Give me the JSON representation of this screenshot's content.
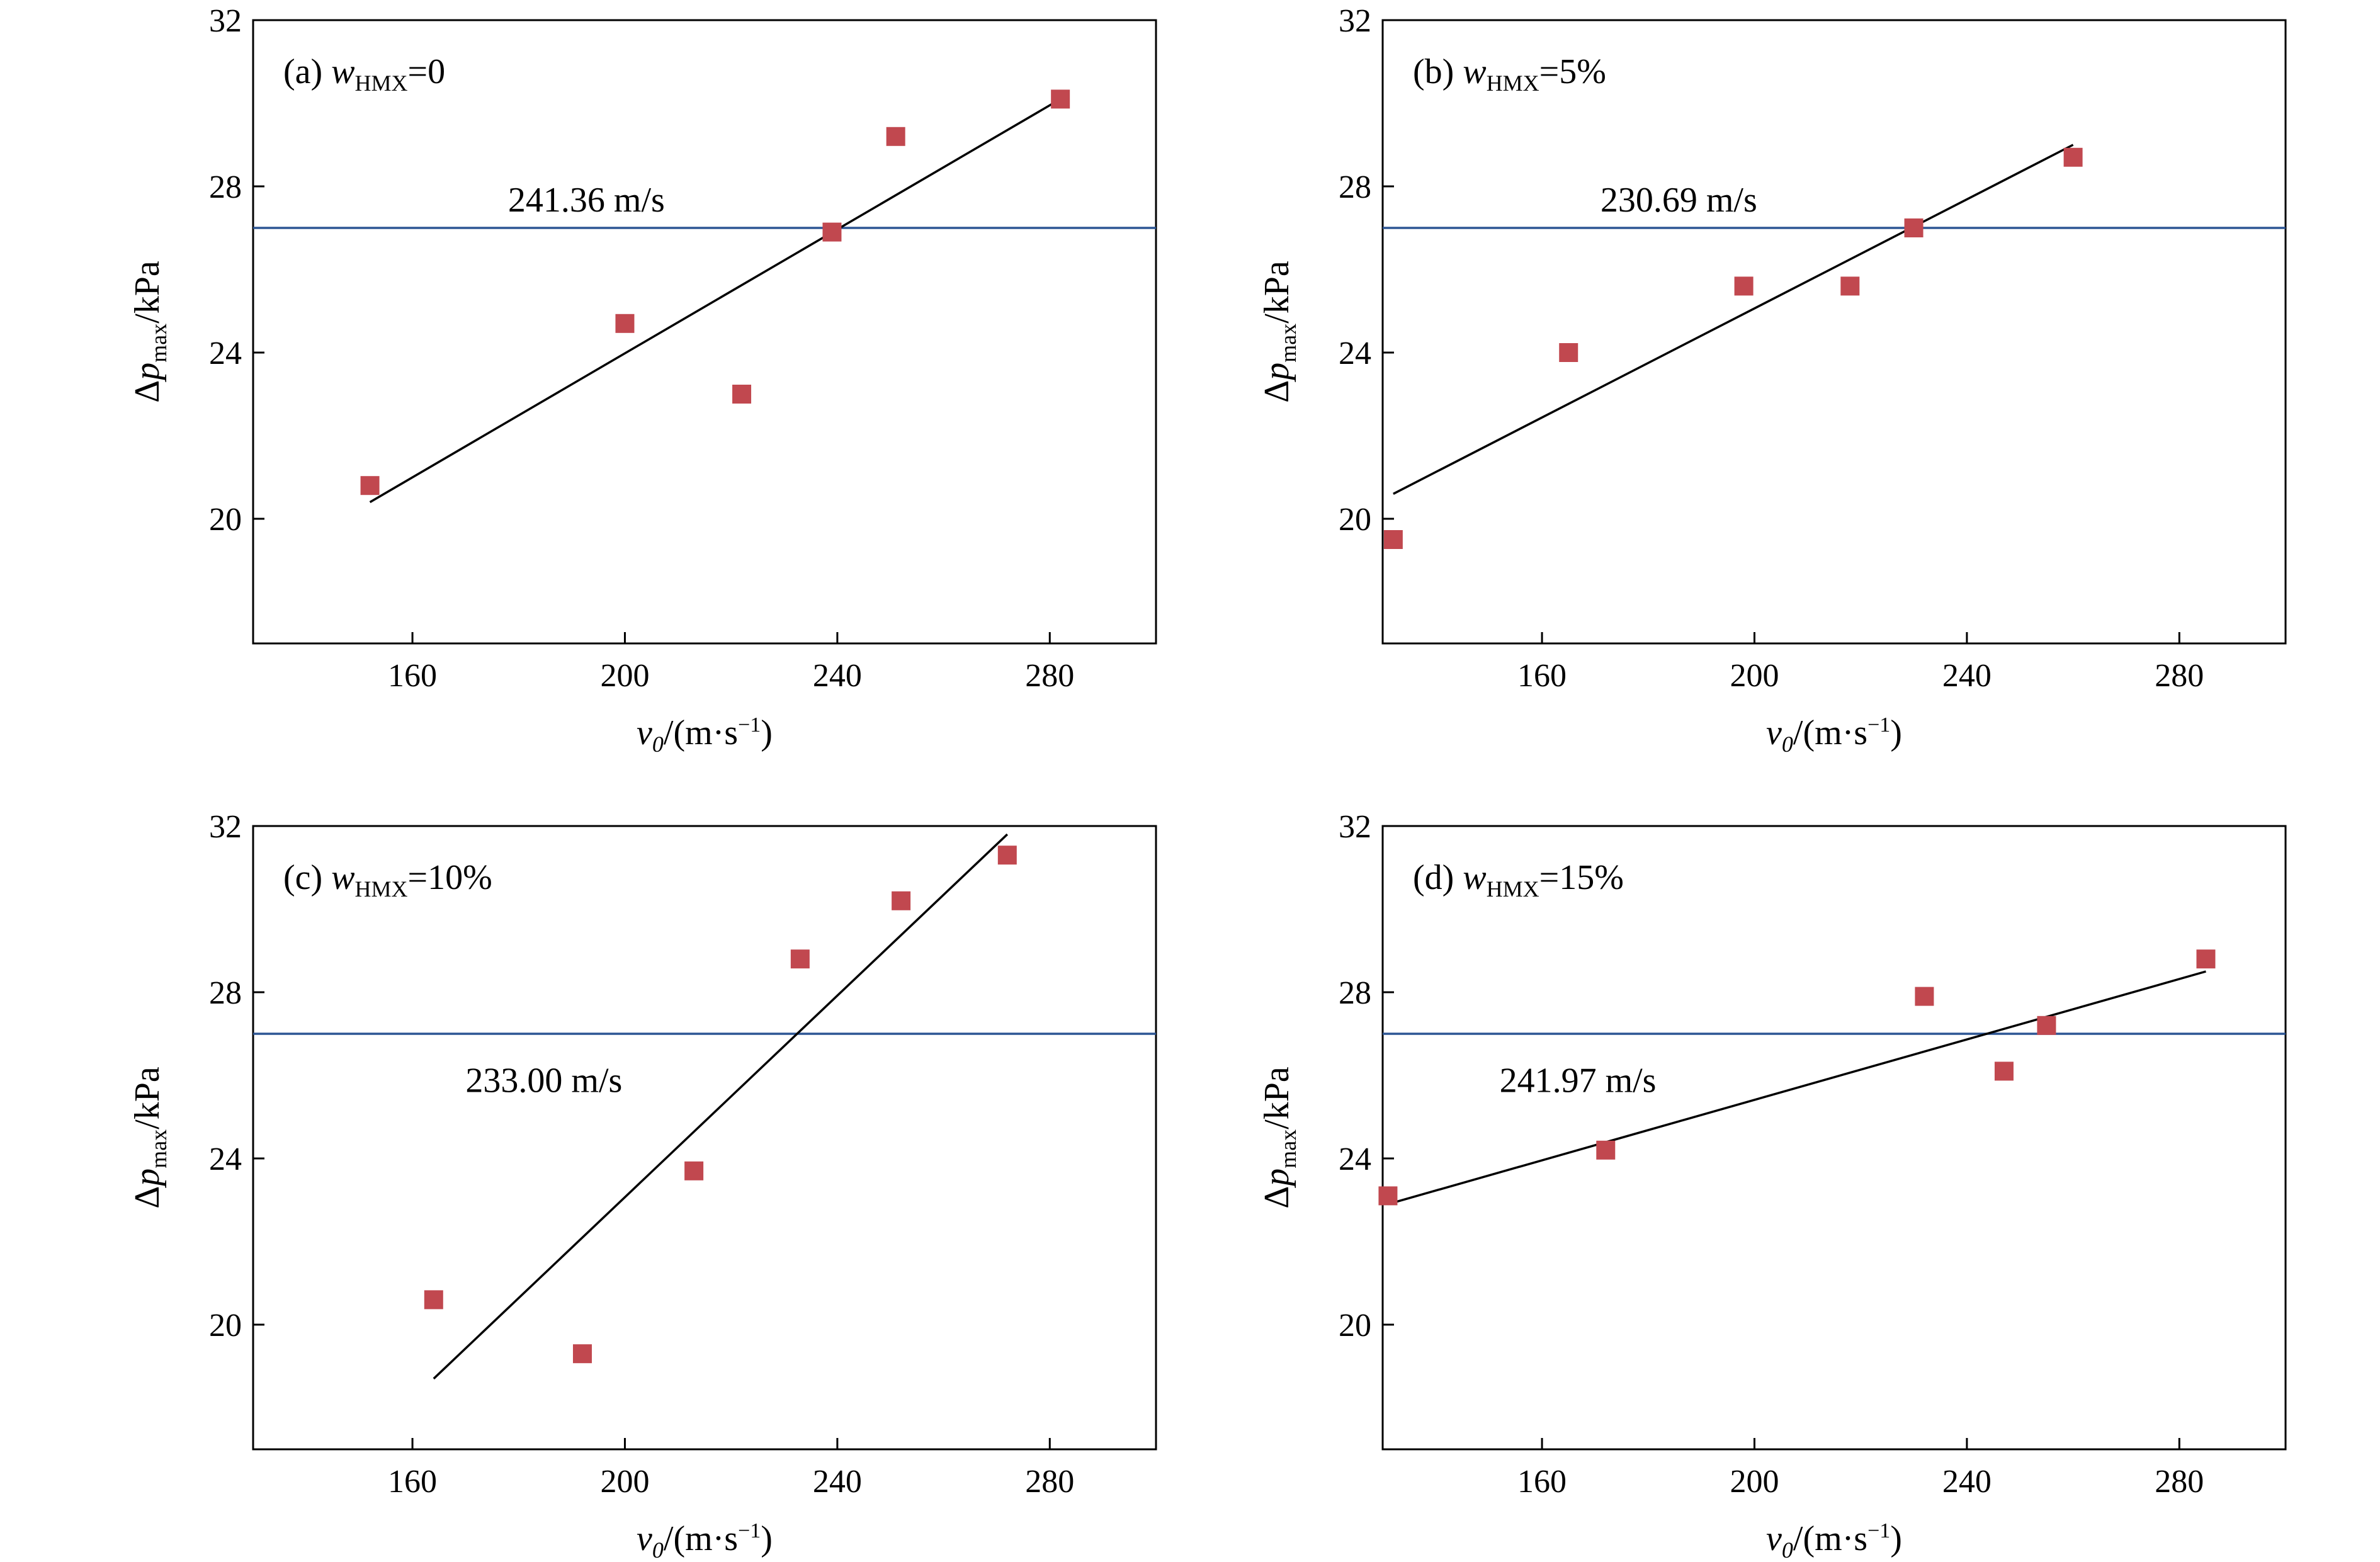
{
  "figure": {
    "x_label": {
      "symbol": "v",
      "sub": "0",
      "unit_prefix": "/(m·s",
      "unit_exp": "−1",
      "unit_suffix": ")"
    },
    "y_label": {
      "symbol": "Δp",
      "sub": "max",
      "unit": "/kPa"
    }
  },
  "chart_data": [
    {
      "type": "scatter",
      "panel": "(a)",
      "w_label": "w",
      "w_sub": "HMX",
      "w_value": "=0",
      "xlim": [
        130,
        300
      ],
      "ylim": [
        17,
        32
      ],
      "xticks": [
        160,
        200,
        240,
        280
      ],
      "yticks": [
        20,
        24,
        28,
        32
      ],
      "x": [
        152,
        200,
        222,
        239,
        251,
        282
      ],
      "y": [
        20.8,
        24.7,
        23.0,
        26.9,
        29.2,
        30.1
      ],
      "fit_line": {
        "x": [
          152,
          282
        ],
        "y": [
          20.4,
          30.1
        ]
      },
      "threshold": 27.0,
      "threshold_label": "241.36 m/s",
      "threshold_label_pos": {
        "x": 178,
        "y": 27.7
      },
      "colors": {
        "marker": "#c1484f",
        "fit": "#000000",
        "threshold": "#2c5594"
      }
    },
    {
      "type": "scatter",
      "panel": "(b)",
      "w_label": "w",
      "w_sub": "HMX",
      "w_value": "=5%",
      "xlim": [
        130,
        300
      ],
      "ylim": [
        17,
        32
      ],
      "xticks": [
        160,
        200,
        240,
        280
      ],
      "yticks": [
        20,
        24,
        28,
        32
      ],
      "x": [
        132,
        165,
        198,
        218,
        230,
        260
      ],
      "y": [
        19.5,
        24.0,
        25.6,
        25.6,
        27.0,
        28.7
      ],
      "fit_line": {
        "x": [
          132,
          260
        ],
        "y": [
          20.6,
          29.0
        ]
      },
      "threshold": 27.0,
      "threshold_label": "230.69 m/s",
      "threshold_label_pos": {
        "x": 171,
        "y": 27.7
      },
      "colors": {
        "marker": "#c1484f",
        "fit": "#000000",
        "threshold": "#2c5594"
      }
    },
    {
      "type": "scatter",
      "panel": "(c)",
      "w_label": "w",
      "w_sub": "HMX",
      "w_value": "=10%",
      "xlim": [
        130,
        300
      ],
      "ylim": [
        17,
        32
      ],
      "xticks": [
        160,
        200,
        240,
        280
      ],
      "yticks": [
        20,
        24,
        28,
        32
      ],
      "x": [
        164,
        192,
        213,
        233,
        252,
        272
      ],
      "y": [
        20.6,
        19.3,
        23.7,
        28.8,
        30.2,
        31.3
      ],
      "fit_line": {
        "x": [
          164,
          272
        ],
        "y": [
          18.7,
          31.8
        ]
      },
      "threshold": 27.0,
      "threshold_label": "233.00 m/s",
      "threshold_label_pos": {
        "x": 170,
        "y": 25.9
      },
      "colors": {
        "marker": "#c1484f",
        "fit": "#000000",
        "threshold": "#2c5594"
      }
    },
    {
      "type": "scatter",
      "panel": "(d)",
      "w_label": "w",
      "w_sub": "HMX",
      "w_value": "=15%",
      "xlim": [
        130,
        300
      ],
      "ylim": [
        17,
        32
      ],
      "xticks": [
        160,
        200,
        240,
        280
      ],
      "yticks": [
        20,
        24,
        28,
        32
      ],
      "x": [
        131,
        172,
        232,
        247,
        255,
        285
      ],
      "y": [
        23.1,
        24.2,
        27.9,
        26.1,
        27.2,
        28.8
      ],
      "fit_line": {
        "x": [
          131,
          285
        ],
        "y": [
          22.9,
          28.5
        ]
      },
      "threshold": 27.0,
      "threshold_label": "241.97 m/s",
      "threshold_label_pos": {
        "x": 152,
        "y": 25.9
      },
      "colors": {
        "marker": "#c1484f",
        "fit": "#000000",
        "threshold": "#2c5594"
      }
    }
  ]
}
